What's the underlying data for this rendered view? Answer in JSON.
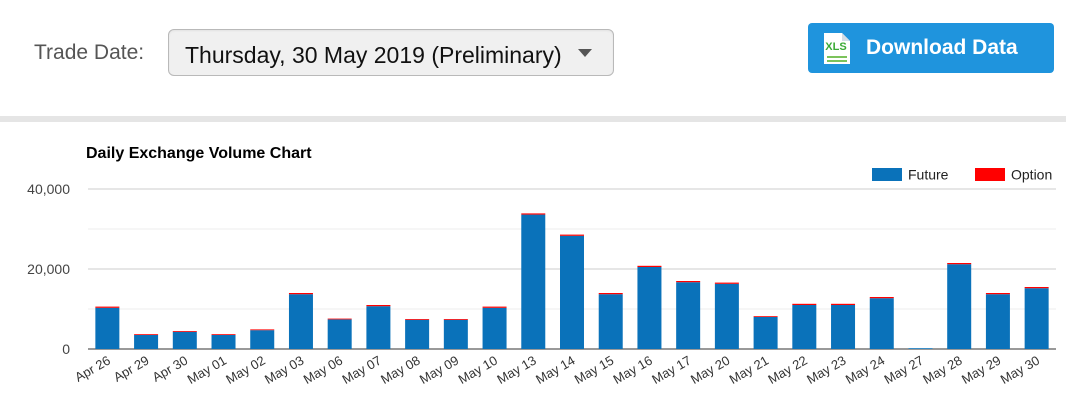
{
  "header": {
    "trade_date_label": "Trade Date:",
    "trade_date_value": "Thursday, 30 May 2019 (Preliminary)",
    "download_label": "Download Data",
    "download_icon": "xls-file-icon",
    "download_icon_text": "XLS"
  },
  "colors": {
    "future": "#0a72ba",
    "option": "#ff0000",
    "button": "#1f94dd"
  },
  "chart_data": {
    "type": "bar",
    "stacked": true,
    "title": "Daily Exchange Volume Chart",
    "xlabel": "",
    "ylabel": "",
    "ylim": [
      0,
      40000
    ],
    "yticks": [
      0,
      20000,
      40000
    ],
    "ytick_labels": [
      "0",
      "20,000",
      "40,000"
    ],
    "grid": true,
    "legend": "top-right",
    "categories": [
      "Apr 26",
      "Apr 29",
      "Apr 30",
      "May 01",
      "May 02",
      "May 03",
      "May 06",
      "May 07",
      "May 08",
      "May 09",
      "May 10",
      "May 13",
      "May 14",
      "May 15",
      "May 16",
      "May 17",
      "May 20",
      "May 21",
      "May 22",
      "May 23",
      "May 24",
      "May 27",
      "May 28",
      "May 29",
      "May 30"
    ],
    "series": [
      {
        "name": "Future",
        "color": "#0a72ba",
        "values": [
          10300,
          3500,
          4300,
          3500,
          4700,
          13700,
          7400,
          10700,
          7300,
          7300,
          10300,
          33600,
          28300,
          13700,
          20500,
          16700,
          16300,
          8000,
          11000,
          11000,
          12700,
          200,
          21200,
          13700,
          15200
        ]
      },
      {
        "name": "Option",
        "color": "#ff0000",
        "values": [
          300,
          200,
          200,
          200,
          200,
          300,
          200,
          300,
          200,
          200,
          300,
          300,
          300,
          300,
          300,
          300,
          300,
          200,
          300,
          300,
          300,
          0,
          300,
          300,
          300
        ]
      }
    ]
  }
}
